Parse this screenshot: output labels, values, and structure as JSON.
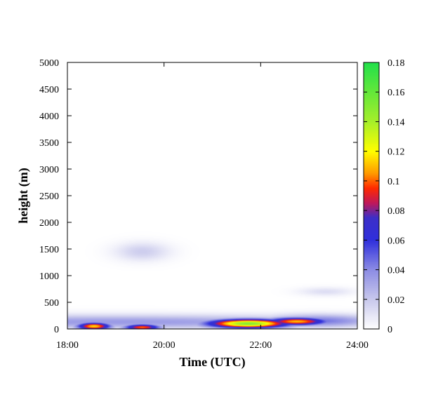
{
  "chart_data": {
    "type": "heatmap",
    "title": "",
    "xlabel": "Time (UTC)",
    "ylabel": "height (m)",
    "x_ticks": [
      "18:00",
      "20:00",
      "22:00",
      "24:00"
    ],
    "xlim": [
      18,
      24
    ],
    "y_ticks": [
      0,
      500,
      1000,
      1500,
      2000,
      2500,
      3000,
      3500,
      4000,
      4500,
      5000
    ],
    "ylim": [
      0,
      5000
    ],
    "colorbar": {
      "range": [
        0,
        0.18
      ],
      "ticks": [
        0,
        0.02,
        0.04,
        0.06,
        0.08,
        0.1,
        0.12,
        0.14,
        0.16,
        0.18
      ],
      "colors": [
        {
          "value": 0.0,
          "color": "#ffffff"
        },
        {
          "value": 0.02,
          "color": "#c8c8ec"
        },
        {
          "value": 0.04,
          "color": "#8c8ce4"
        },
        {
          "value": 0.06,
          "color": "#2f2fdc"
        },
        {
          "value": 0.075,
          "color": "#3c2fc8"
        },
        {
          "value": 0.085,
          "color": "#c0185a"
        },
        {
          "value": 0.095,
          "color": "#ff2a00"
        },
        {
          "value": 0.105,
          "color": "#ff9a00"
        },
        {
          "value": 0.12,
          "color": "#ffff00"
        },
        {
          "value": 0.14,
          "color": "#a6ef2a"
        },
        {
          "value": 0.18,
          "color": "#22e04a"
        }
      ]
    },
    "features": [
      {
        "time_center": 19.0,
        "time_halfwidth": 6.0,
        "height_center": 130,
        "height_halfwidth": 130,
        "peak": 0.035
      },
      {
        "time_center": 23.2,
        "time_halfwidth": 1.2,
        "height_center": 150,
        "height_halfwidth": 120,
        "peak": 0.045
      },
      {
        "time_center": 18.55,
        "time_halfwidth": 0.35,
        "height_center": 50,
        "height_halfwidth": 70,
        "peak": 0.115
      },
      {
        "time_center": 19.55,
        "time_halfwidth": 0.38,
        "height_center": 30,
        "height_halfwidth": 60,
        "peak": 0.1
      },
      {
        "time_center": 21.75,
        "time_halfwidth": 0.85,
        "height_center": 100,
        "height_halfwidth": 85,
        "peak": 0.15
      },
      {
        "time_center": 22.75,
        "time_halfwidth": 0.65,
        "height_center": 140,
        "height_halfwidth": 75,
        "peak": 0.11
      },
      {
        "time_center": 19.55,
        "time_halfwidth": 0.55,
        "height_center": 1450,
        "height_halfwidth": 170,
        "peak": 0.018
      },
      {
        "time_center": 23.35,
        "time_halfwidth": 0.55,
        "height_center": 700,
        "height_halfwidth": 80,
        "peak": 0.012
      }
    ]
  }
}
